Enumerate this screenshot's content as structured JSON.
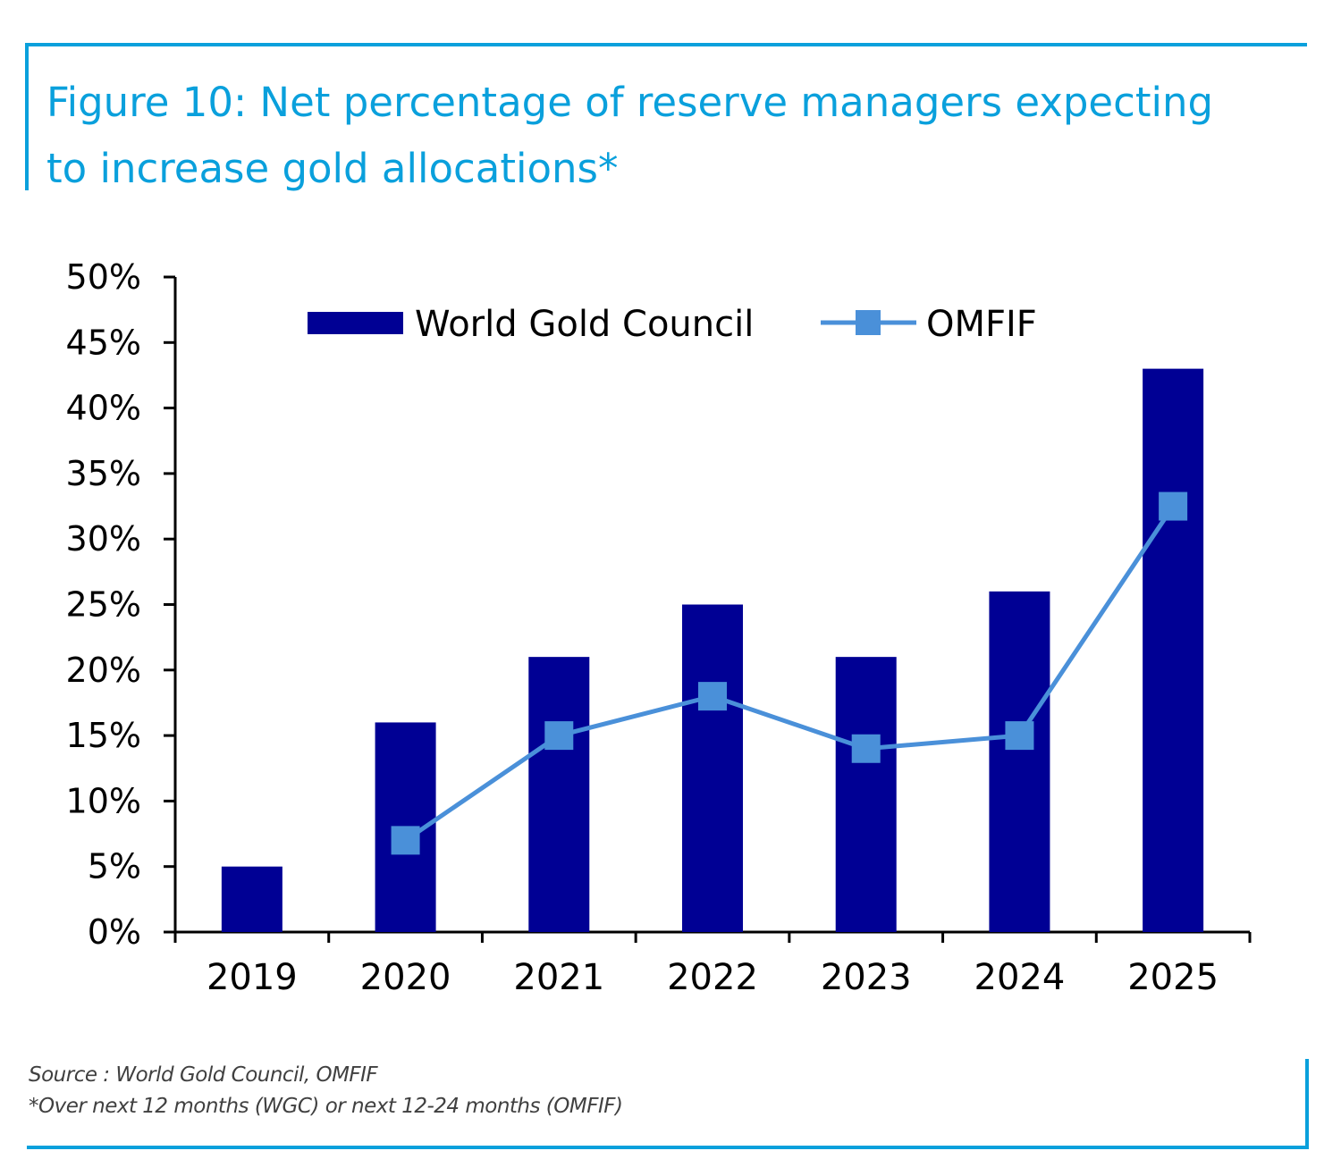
{
  "title_lines": [
    "Figure 10: Net percentage of reserve managers expecting",
    "to increase gold allocations*"
  ],
  "source": "Source : World Gold Council, OMFIF",
  "footnote": "*Over next 12 months (WGC) or next 12-24 months (OMFIF)",
  "colors": {
    "frame": "#0aa0dc",
    "title": "#0aa0dc",
    "bar": "#000094",
    "line": "#4a90d9"
  },
  "chart_data": {
    "type": "bar",
    "title": "Figure 10: Net percentage of reserve managers expecting to increase gold allocations*",
    "categories": [
      "2019",
      "2020",
      "2021",
      "2022",
      "2023",
      "2024",
      "2025"
    ],
    "ylim": [
      0,
      50
    ],
    "y_ticks": [
      "0%",
      "5%",
      "10%",
      "15%",
      "20%",
      "25%",
      "30%",
      "35%",
      "40%",
      "45%",
      "50%"
    ],
    "legend_placement": "top-center",
    "grid": false,
    "series": [
      {
        "name": "World Gold Council",
        "type": "bar",
        "values": [
          5,
          16,
          21,
          25,
          21,
          26,
          43
        ]
      },
      {
        "name": "OMFIF",
        "type": "line",
        "marker": "square",
        "values": [
          null,
          7,
          15,
          18,
          14,
          15,
          32.5
        ]
      }
    ]
  }
}
